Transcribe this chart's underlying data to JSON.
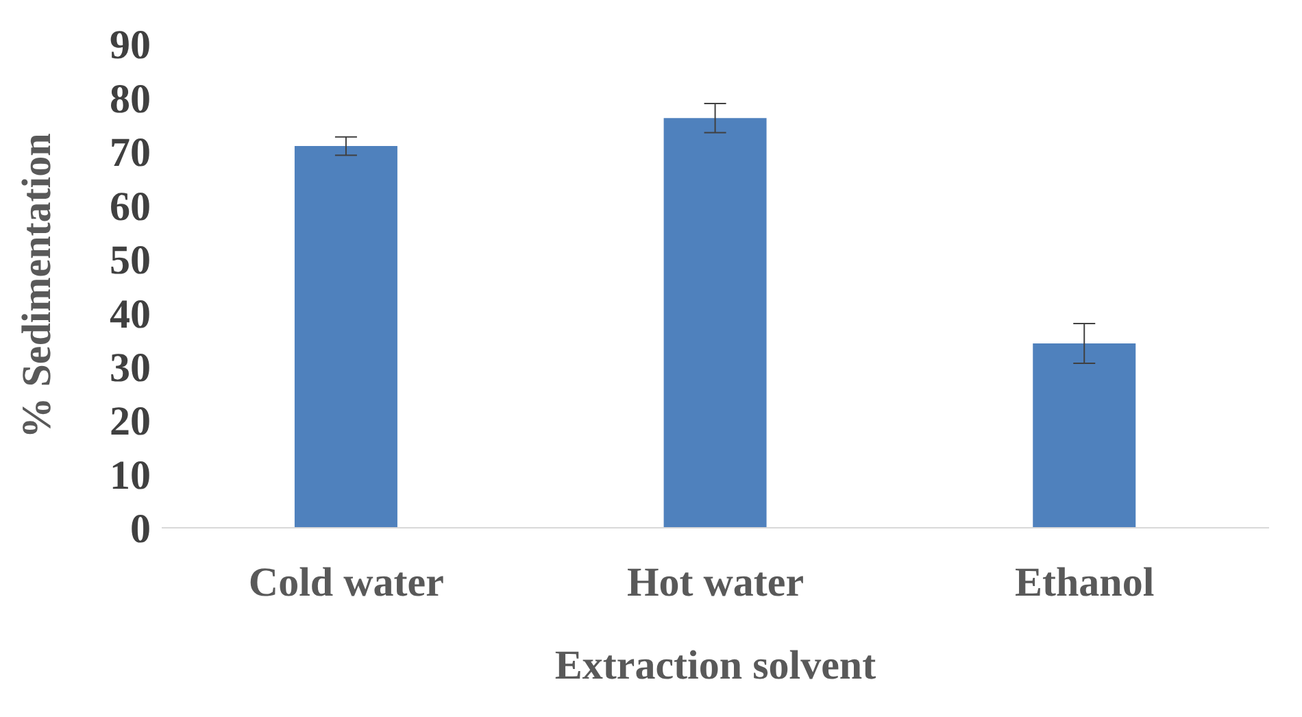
{
  "chart_data": {
    "type": "bar",
    "xlabel": "Extraction solvent",
    "ylabel": "% Sedimentation",
    "categories": [
      "Cold water",
      "Hot water",
      "Ethanol"
    ],
    "values": [
      71,
      76.2,
      34.3
    ],
    "errors": [
      1.7,
      2.7,
      3.7
    ],
    "color": "#4f81bd",
    "ylim": [
      0,
      90
    ],
    "yticks": [
      0,
      10,
      20,
      30,
      40,
      50,
      60,
      70,
      80,
      90
    ],
    "grid": false,
    "legend": false
  }
}
